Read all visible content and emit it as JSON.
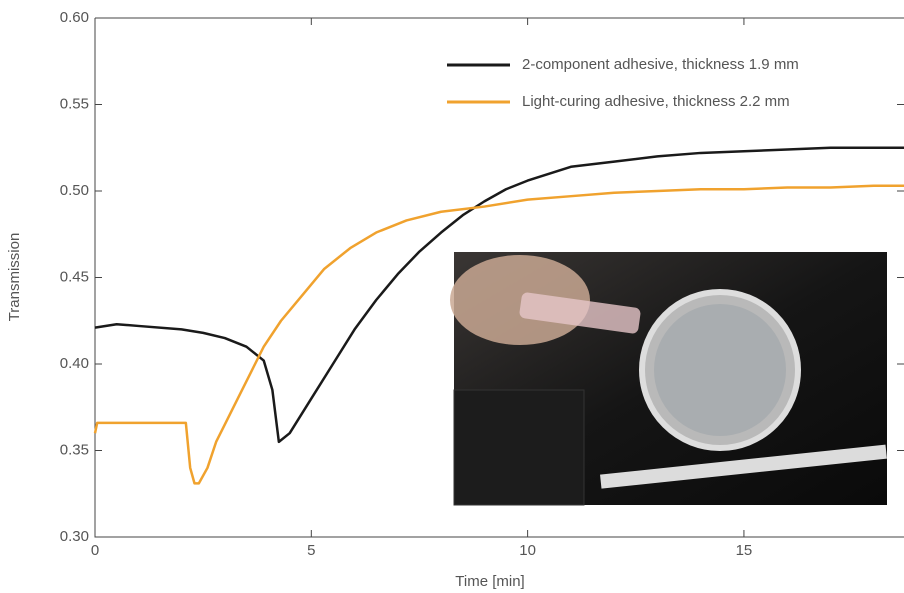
{
  "chart_data": {
    "type": "line",
    "x_label": "Time [min]",
    "y_label": "Transmission",
    "xlim": [
      0,
      18.7
    ],
    "ylim": [
      0.3,
      0.6
    ],
    "xticks": [
      0,
      5,
      10,
      15
    ],
    "yticks": [
      {
        "value": 0.3,
        "label": "0.30"
      },
      {
        "value": 0.35,
        "label": "0.35"
      },
      {
        "value": 0.4,
        "label": "0.40"
      },
      {
        "value": 0.45,
        "label": "0.45"
      },
      {
        "value": 0.5,
        "label": "0.50"
      },
      {
        "value": 0.55,
        "label": "0.55"
      },
      {
        "value": 0.6,
        "label": "0.60"
      }
    ],
    "legend": "upper right",
    "series": [
      {
        "name": "2-component adhesive, thickness 1.9 mm",
        "color": "#1a1a1a",
        "x": [
          0,
          0.5,
          1,
          2,
          2.5,
          3,
          3.5,
          3.9,
          4.1,
          4.25,
          4.5,
          5,
          5.5,
          6,
          6.5,
          7,
          7.5,
          8,
          8.5,
          9,
          9.5,
          10,
          10.5,
          11,
          12,
          13,
          14,
          15,
          16,
          17,
          18,
          18.7
        ],
        "values": [
          0.421,
          0.423,
          0.422,
          0.42,
          0.418,
          0.415,
          0.41,
          0.402,
          0.385,
          0.355,
          0.36,
          0.38,
          0.4,
          0.42,
          0.437,
          0.452,
          0.465,
          0.476,
          0.486,
          0.494,
          0.501,
          0.506,
          0.51,
          0.514,
          0.517,
          0.52,
          0.522,
          0.523,
          0.524,
          0.525,
          0.525,
          0.525
        ]
      },
      {
        "name": "Light-curing adhesive, thickness 2.2 mm",
        "color": "#f0a22e",
        "x": [
          0,
          0.05,
          1,
          2.1,
          2.2,
          2.3,
          2.4,
          2.6,
          2.8,
          3,
          3.3,
          3.6,
          3.9,
          4.3,
          4.8,
          5.3,
          5.9,
          6.5,
          7.2,
          8,
          9,
          10,
          11,
          12,
          13,
          14,
          15,
          16,
          17,
          18,
          18.7
        ],
        "values": [
          0.36,
          0.366,
          0.366,
          0.366,
          0.34,
          0.331,
          0.331,
          0.34,
          0.355,
          0.365,
          0.38,
          0.395,
          0.41,
          0.425,
          0.44,
          0.455,
          0.467,
          0.476,
          0.483,
          0.488,
          0.491,
          0.495,
          0.497,
          0.499,
          0.5,
          0.501,
          0.501,
          0.502,
          0.502,
          0.503,
          0.503
        ]
      }
    ]
  }
}
